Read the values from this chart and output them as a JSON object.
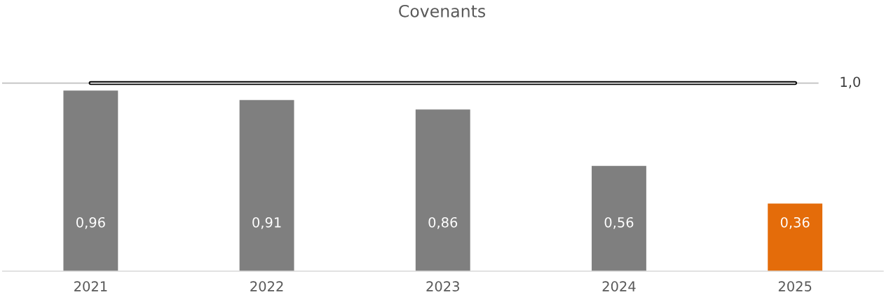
{
  "chart_data": {
    "type": "bar",
    "title": "Covenants",
    "categories": [
      "2021",
      "2022",
      "2023",
      "2024",
      "2025"
    ],
    "series": [
      {
        "colors": [
          "#7f7f7f",
          "#7f7f7f",
          "#7f7f7f",
          "#7f7f7f",
          "#e46c0a"
        ],
        "values": [
          0.96,
          0.91,
          0.86,
          0.56,
          0.36
        ],
        "value_labels": [
          "0,96",
          "0,91",
          "0,86",
          "0,56",
          "0,36"
        ]
      },
      {
        "type": "line",
        "color": "#000000",
        "values": [
          1.0,
          1.0,
          1.0,
          1.0,
          1.0
        ]
      }
    ],
    "ref_lines": [
      {
        "axis": "y",
        "value": 1.0,
        "label": "1,0",
        "color": "#bfbfbf"
      }
    ],
    "tick_labels": "x",
    "grid": false
  }
}
